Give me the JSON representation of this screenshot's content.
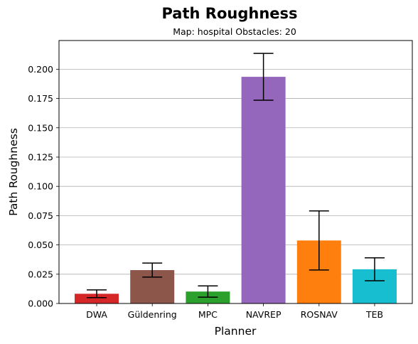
{
  "chart_data": {
    "type": "bar",
    "title": "Path Roughness",
    "subtitle": "Map: hospital Obstacles: 20",
    "xlabel": "Planner",
    "ylabel": "Path Roughness",
    "categories": [
      "DWA",
      "Güldenring",
      "MPC",
      "NAVREP",
      "ROSNAV",
      "TEB"
    ],
    "values": [
      0.0083,
      0.0285,
      0.0102,
      0.1935,
      0.0538,
      0.0292
    ],
    "error": [
      0.0033,
      0.006,
      0.0048,
      0.02,
      0.0252,
      0.0098
    ],
    "colors": [
      "#d62728",
      "#8c564b",
      "#2ca02c",
      "#9467bd",
      "#ff7f0e",
      "#17becf"
    ],
    "ylim": [
      0,
      0.2245
    ],
    "yticks": [
      "0.000",
      "0.025",
      "0.050",
      "0.075",
      "0.100",
      "0.125",
      "0.150",
      "0.175",
      "0.200"
    ],
    "grid": "horizontal",
    "legend": "none"
  }
}
